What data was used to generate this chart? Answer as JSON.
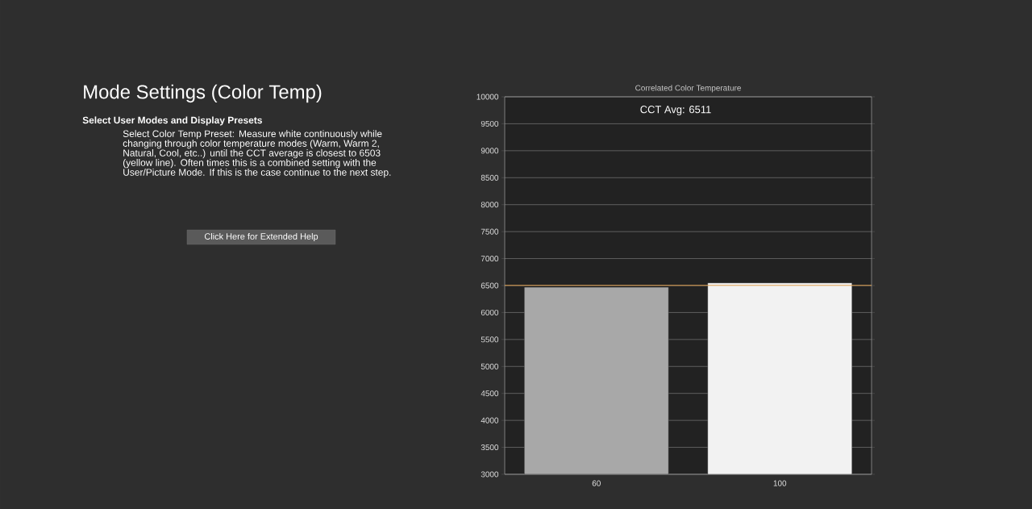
{
  "chart_data": {
    "type": "bar",
    "title": "Correlated Color Temperature",
    "categories": [
      "60",
      "100"
    ],
    "values": [
      6470,
      6550
    ],
    "colors": [
      "#a8a8a8",
      "#f2f2f2"
    ],
    "ylim": [
      3000,
      10000
    ],
    "yticks": [
      3000,
      3500,
      4000,
      4500,
      5000,
      5500,
      6000,
      6500,
      7000,
      7500,
      8000,
      8500,
      9000,
      9500,
      10000
    ],
    "grid": "y",
    "ref_lines": [
      {
        "axis": "y",
        "value": 6503,
        "color": "#e0a050"
      }
    ],
    "annotations": [
      "Mode Settings (Color Temp)",
      "Select User Modes and Display Presets",
      "Select Color Temp Preset: Measure white continuously while changing through color temperature modes (Warm, Warm 2, Natural, Cool, etc..) until the CCT average is closest to 6503 (yellow line). Often times this is a combined setting with the User/Picture Mode. If this is the case continue to the next step.",
      "Click Here for Extended Help",
      "CCT Avg: 6511"
    ]
  }
}
